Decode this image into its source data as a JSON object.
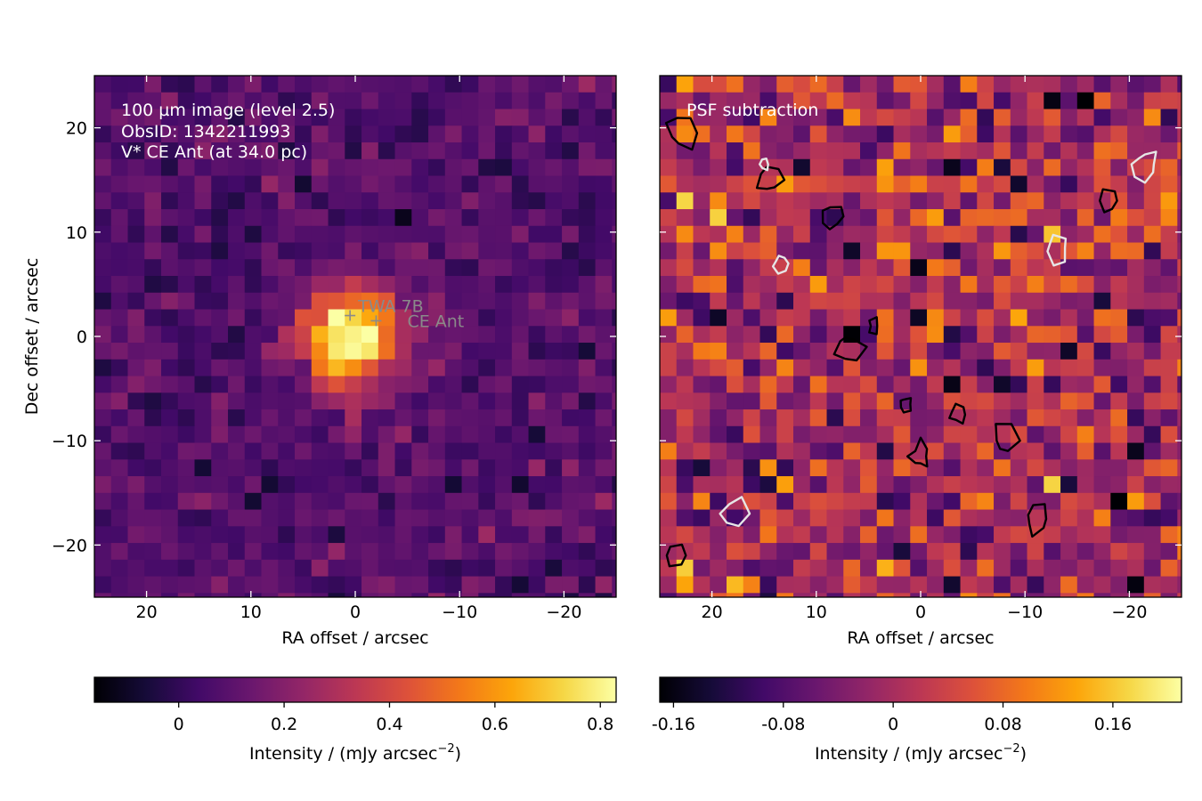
{
  "colors": {
    "colormap": "inferno",
    "positive_contour": "#000000",
    "negative_contour": "#e6e6e6",
    "marker": "#8a8a8a"
  },
  "chart_data": [
    {
      "type": "heatmap",
      "colormap": "inferno",
      "title": "",
      "annotations": [
        "100 µm image (level 2.5)",
        "ObsID: 1342211993",
        "V* CE Ant (at 34.0 pc)"
      ],
      "markers": [
        {
          "label": "TWA 7B",
          "ra": 0.5,
          "dec": 2.0
        },
        {
          "label": "CE Ant",
          "ra": -2.0,
          "dec": 1.5
        }
      ],
      "xlabel": "RA offset / arcsec",
      "ylabel": "Dec offset / arcsec",
      "xlim": [
        25,
        -25
      ],
      "ylim": [
        -25,
        25
      ],
      "xticks": [
        20,
        10,
        0,
        -10,
        -20
      ],
      "xtick_labels": [
        "20",
        "10",
        "0",
        "−10",
        "−20"
      ],
      "yticks": [
        20,
        10,
        0,
        -10,
        -20
      ],
      "ytick_labels": [
        "20",
        "10",
        "0",
        "−10",
        "−20"
      ],
      "grid": false,
      "pixel_size_arcsec": 1.6,
      "source": {
        "ra": 0.5,
        "dec": 0.0,
        "peak": 0.82,
        "sigma_arcsec": 3.2
      },
      "background_mean": 0.08,
      "noise_rms": 0.06,
      "vmin": -0.16,
      "vmax": 0.83,
      "colorbar": {
        "label_prefix": "Intensity / (mJy arcsec",
        "label_exp": "−2",
        "label_suffix": ")",
        "min": -0.16,
        "max": 0.83,
        "ticks": [
          0,
          0.2,
          0.4,
          0.6,
          0.8
        ],
        "tick_labels": [
          "0",
          "0.2",
          "0.4",
          "0.6",
          "0.8"
        ]
      }
    },
    {
      "type": "heatmap",
      "colormap": "inferno",
      "title": "",
      "annotations": [
        "PSF subtraction"
      ],
      "xlabel": "RA offset / arcsec",
      "ylabel": "",
      "xlim": [
        25,
        -25
      ],
      "ylim": [
        -25,
        25
      ],
      "xticks": [
        20,
        10,
        0,
        -10,
        -20
      ],
      "xtick_labels": [
        "20",
        "10",
        "0",
        "−10",
        "−20"
      ],
      "yticks": [
        20,
        10,
        0,
        -10,
        -20
      ],
      "grid": false,
      "pixel_size_arcsec": 1.6,
      "noise_rms": 0.06,
      "vmin": -0.17,
      "vmax": 0.21,
      "contours": [
        {
          "sign": "positive",
          "ra": 14.5,
          "dec": 15.0
        },
        {
          "sign": "positive",
          "ra": 4.5,
          "dec": 1.0
        },
        {
          "sign": "positive",
          "ra": -3.5,
          "dec": -7.5
        },
        {
          "sign": "positive",
          "ra": 23.5,
          "dec": -21.0
        },
        {
          "sign": "positive",
          "ra": -11.0,
          "dec": -17.5
        },
        {
          "sign": "positive",
          "ra": 8.5,
          "dec": 11.5
        },
        {
          "sign": "positive",
          "ra": 7.0,
          "dec": -1.0
        },
        {
          "sign": "positive",
          "ra": 1.5,
          "dec": -6.5
        },
        {
          "sign": "positive",
          "ra": 0.0,
          "dec": -11.5
        },
        {
          "sign": "positive",
          "ra": -8.0,
          "dec": -10.0
        },
        {
          "sign": "positive",
          "ra": -18.0,
          "dec": 13.0
        },
        {
          "sign": "positive",
          "ra": 23.0,
          "dec": 19.5
        },
        {
          "sign": "negative",
          "ra": 18.0,
          "dec": -17.0
        },
        {
          "sign": "negative",
          "ra": 13.5,
          "dec": 7.0
        },
        {
          "sign": "negative",
          "ra": -21.5,
          "dec": 16.5
        },
        {
          "sign": "negative",
          "ra": 15.0,
          "dec": 16.5
        },
        {
          "sign": "negative",
          "ra": -13.0,
          "dec": 8.5
        }
      ],
      "colorbar": {
        "label_prefix": "Intensity / (mJy arcsec",
        "label_exp": "−2",
        "label_suffix": ")",
        "min": -0.17,
        "max": 0.21,
        "ticks": [
          -0.16,
          -0.08,
          0,
          0.08,
          0.16
        ],
        "tick_labels": [
          "-0.16",
          "-0.08",
          "0",
          "0.08",
          "0.16"
        ]
      }
    }
  ]
}
